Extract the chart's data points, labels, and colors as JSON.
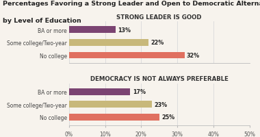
{
  "title_line1": "Percentages Favoring a Strong Leader and Open to Democratic Alternatives",
  "title_line2": "by Level of Education",
  "title_fontsize": 6.8,
  "group1_title": "STRONG LEADER IS GOOD",
  "group2_title": "DEMOCRACY IS NOT ALWAYS PREFERABLE",
  "categories": [
    "BA or more",
    "Some college/Two-year",
    "No college"
  ],
  "group1_values": [
    13,
    22,
    32
  ],
  "group2_values": [
    17,
    23,
    25
  ],
  "bar_colors": [
    "#7b4472",
    "#c8b87a",
    "#e07060"
  ],
  "xlim": [
    0,
    50
  ],
  "xtick_values": [
    0,
    10,
    20,
    30,
    40,
    50
  ],
  "xtick_labels": [
    "0%",
    "10%",
    "20%",
    "30%",
    "40%",
    "50%"
  ],
  "value_label_fontsize": 5.8,
  "ytick_fontsize": 5.5,
  "xtick_fontsize": 5.5,
  "group_title_fontsize": 6.2,
  "background_color": "#f7f3ed",
  "bar_height": 0.52,
  "grid_color": "#dddddd"
}
